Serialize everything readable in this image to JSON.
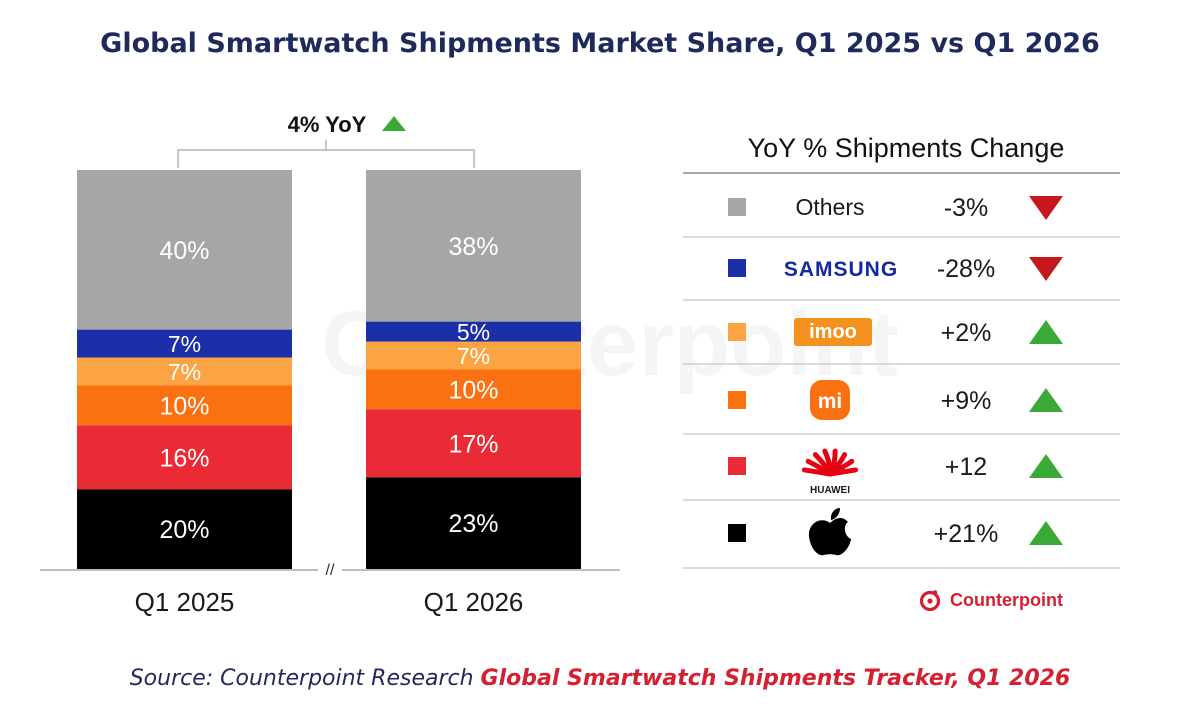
{
  "title": "Global Smartwatch Shipments Market Share, Q1 2025 vs Q1 2026",
  "watermark": "Counterpoint",
  "source": {
    "prefix": "Source: Counterpoint Research ",
    "highlight": "Global Smartwatch Shipments Tracker, Q1 2026"
  },
  "brand_logo_text": "Counterpoint",
  "chart_data": {
    "type": "bar",
    "stacked": true,
    "unit": "%",
    "categories": [
      "Q1 2025",
      "Q1 2026"
    ],
    "axis_break_label": "//",
    "yoy_total": {
      "label": "4% YoY",
      "direction": "up"
    },
    "series": [
      {
        "name": "Apple",
        "color": "#000000",
        "values": [
          20,
          23
        ],
        "labels": [
          "20%",
          "23%"
        ]
      },
      {
        "name": "HUAWEI",
        "color": "#ea2a35",
        "values": [
          16,
          17
        ],
        "labels": [
          "16%",
          "17%"
        ]
      },
      {
        "name": "mi",
        "color": "#fb7010",
        "values": [
          10,
          10
        ],
        "labels": [
          "10%",
          "10%"
        ]
      },
      {
        "name": "imoo",
        "color": "#fba444",
        "values": [
          7,
          7
        ],
        "labels": [
          "7%",
          "7%"
        ]
      },
      {
        "name": "SAMSUNG",
        "color": "#1a2fa8",
        "values": [
          7,
          5
        ],
        "labels": [
          "7%",
          "5%"
        ]
      },
      {
        "name": "Others",
        "color": "#a6a6a6",
        "values": [
          40,
          38
        ],
        "labels": [
          "40%",
          "38%"
        ]
      }
    ],
    "yoy_table": {
      "title": "YoY % Shipments Change",
      "rows": [
        {
          "brand": "Others",
          "logo": "text-label",
          "color": "#a6a6a6",
          "change": "-3%",
          "direction": "down"
        },
        {
          "brand": "SAMSUNG",
          "logo": "samsung-wordmark",
          "color": "#1a2fa8",
          "change": "-28%",
          "direction": "down"
        },
        {
          "brand": "imoo",
          "logo": "imoo-logo",
          "color": "#fba444",
          "change": "+2%",
          "direction": "up"
        },
        {
          "brand": "mi",
          "logo": "xiaomi-logo",
          "color": "#fb7010",
          "change": "+9%",
          "direction": "up"
        },
        {
          "brand": "HUAWEI",
          "logo": "huawei-logo",
          "color": "#ea2a35",
          "change": "+12",
          "direction": "up"
        },
        {
          "brand": "Apple",
          "logo": "apple-logo",
          "color": "#000000",
          "change": "+21%",
          "direction": "up"
        }
      ]
    },
    "colors": {
      "up": "#3aa935",
      "down": "#c8161d"
    }
  }
}
